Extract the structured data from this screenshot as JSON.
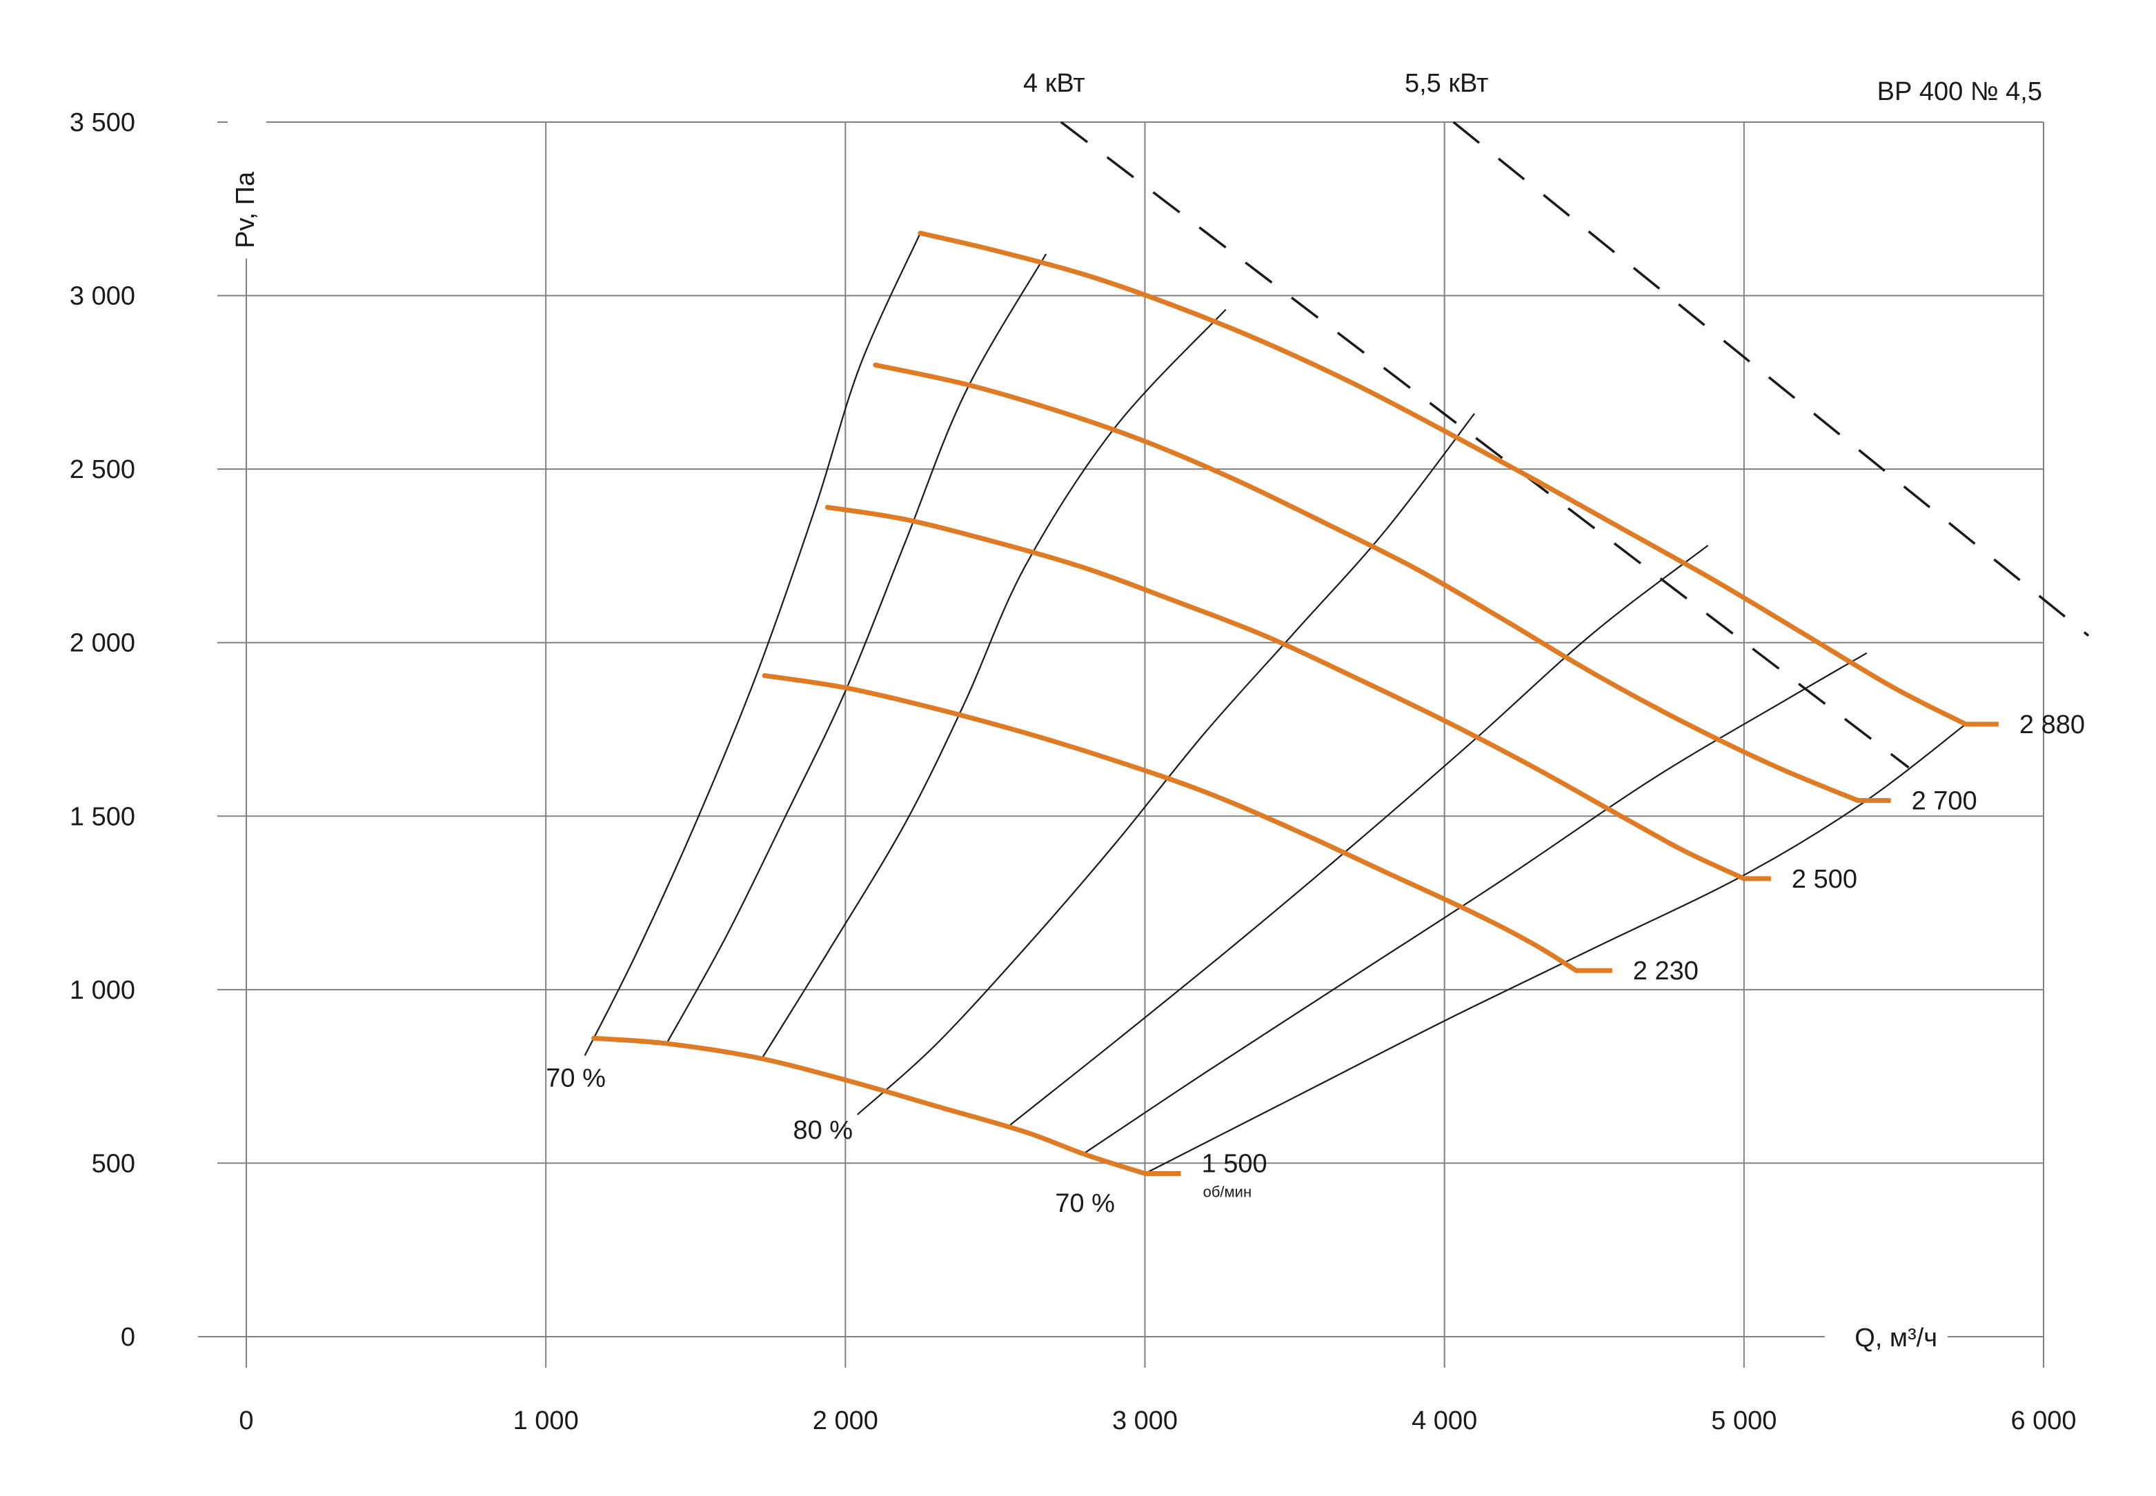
{
  "chart_data": {
    "type": "line",
    "title": "ВР 400 № 4,5",
    "xlabel": "Q, м³/ч",
    "ylabel": "Pv, Па",
    "xlim": [
      0,
      6000
    ],
    "ylim": [
      0,
      3500
    ],
    "x_ticks": [
      0,
      1000,
      2000,
      3000,
      4000,
      5000,
      6000
    ],
    "x_tick_labels": [
      "0",
      "1 000",
      "2 000",
      "3 000",
      "4 000",
      "5 000",
      "6 000"
    ],
    "y_ticks": [
      0,
      500,
      1000,
      1500,
      2000,
      2500,
      3000,
      3500
    ],
    "y_tick_labels": [
      "0",
      "500",
      "1 000",
      "1 500",
      "2 000",
      "2 500",
      "3 000",
      "3 500"
    ],
    "grid": true,
    "speed_curves": [
      {
        "label": "1 500",
        "unit": "об/мин",
        "points": [
          [
            1160,
            860
          ],
          [
            1400,
            845
          ],
          [
            1700,
            805
          ],
          [
            2000,
            740
          ],
          [
            2300,
            665
          ],
          [
            2600,
            590
          ],
          [
            2800,
            525
          ],
          [
            3000,
            470
          ]
        ],
        "stub_end": 3120
      },
      {
        "label": "2 230",
        "points": [
          [
            1730,
            1905
          ],
          [
            2000,
            1870
          ],
          [
            2300,
            1810
          ],
          [
            2600,
            1740
          ],
          [
            2900,
            1660
          ],
          [
            3200,
            1570
          ],
          [
            3500,
            1460
          ],
          [
            3800,
            1340
          ],
          [
            4100,
            1220
          ],
          [
            4300,
            1130
          ],
          [
            4440,
            1055
          ]
        ],
        "stub_end": 4560
      },
      {
        "label": "2 500",
        "points": [
          [
            1940,
            2390
          ],
          [
            2200,
            2355
          ],
          [
            2500,
            2290
          ],
          [
            2800,
            2215
          ],
          [
            3100,
            2120
          ],
          [
            3400,
            2020
          ],
          [
            3700,
            1900
          ],
          [
            4000,
            1775
          ],
          [
            4300,
            1640
          ],
          [
            4600,
            1495
          ],
          [
            4800,
            1400
          ],
          [
            5000,
            1320
          ]
        ],
        "stub_end": 5090
      },
      {
        "label": "2 700",
        "points": [
          [
            2100,
            2800
          ],
          [
            2400,
            2745
          ],
          [
            2700,
            2670
          ],
          [
            3000,
            2580
          ],
          [
            3300,
            2470
          ],
          [
            3600,
            2345
          ],
          [
            3900,
            2215
          ],
          [
            4200,
            2065
          ],
          [
            4500,
            1910
          ],
          [
            4800,
            1770
          ],
          [
            5100,
            1645
          ],
          [
            5380,
            1545
          ]
        ],
        "stub_end": 5490
      },
      {
        "label": "2 880",
        "points": [
          [
            2250,
            3180
          ],
          [
            2500,
            3130
          ],
          [
            2800,
            3060
          ],
          [
            3100,
            2970
          ],
          [
            3400,
            2865
          ],
          [
            3700,
            2745
          ],
          [
            4000,
            2610
          ],
          [
            4300,
            2470
          ],
          [
            4600,
            2325
          ],
          [
            4900,
            2180
          ],
          [
            5200,
            2025
          ],
          [
            5500,
            1870
          ],
          [
            5740,
            1765
          ]
        ],
        "stub_end": 5850
      }
    ],
    "efficiency_lines": [
      {
        "points": [
          [
            1130,
            810
          ],
          [
            1300,
            1100
          ],
          [
            1500,
            1480
          ],
          [
            1700,
            1900
          ],
          [
            1900,
            2390
          ],
          [
            2050,
            2800
          ],
          [
            2250,
            3180
          ]
        ]
      },
      {
        "points": [
          [
            1400,
            840
          ],
          [
            1600,
            1150
          ],
          [
            1800,
            1500
          ],
          [
            2000,
            1860
          ],
          [
            2200,
            2290
          ],
          [
            2400,
            2720
          ],
          [
            2670,
            3120
          ]
        ]
      },
      {
        "points": [
          [
            1720,
            800
          ],
          [
            1950,
            1120
          ],
          [
            2200,
            1480
          ],
          [
            2400,
            1830
          ],
          [
            2600,
            2220
          ],
          [
            2900,
            2620
          ],
          [
            3270,
            2960
          ]
        ]
      },
      {
        "points": [
          [
            2040,
            640
          ],
          [
            2300,
            840
          ],
          [
            2600,
            1120
          ],
          [
            2900,
            1420
          ],
          [
            3200,
            1740
          ],
          [
            3500,
            2030
          ],
          [
            3800,
            2320
          ],
          [
            4100,
            2660
          ]
        ]
      },
      {
        "points": [
          [
            2550,
            610
          ],
          [
            2900,
            850
          ],
          [
            3300,
            1130
          ],
          [
            3700,
            1420
          ],
          [
            4100,
            1720
          ],
          [
            4500,
            2030
          ],
          [
            4880,
            2280
          ]
        ]
      },
      {
        "points": [
          [
            2800,
            530
          ],
          [
            3200,
            760
          ],
          [
            3700,
            1040
          ],
          [
            4200,
            1320
          ],
          [
            4700,
            1610
          ],
          [
            5150,
            1840
          ],
          [
            5410,
            1970
          ]
        ]
      },
      {
        "points": [
          [
            3000,
            470
          ],
          [
            3500,
            690
          ],
          [
            4000,
            910
          ],
          [
            4500,
            1120
          ],
          [
            5000,
            1330
          ],
          [
            5400,
            1540
          ],
          [
            5740,
            1765
          ]
        ]
      }
    ],
    "efficiency_labels": [
      {
        "text": "70 %",
        "x": 1100,
        "y": 720
      },
      {
        "text": "80 %",
        "x": 1925,
        "y": 570
      },
      {
        "text": "70 %",
        "x": 2800,
        "y": 360
      }
    ],
    "power_lines": [
      {
        "label": "4 кВт",
        "points": [
          [
            2720,
            3500
          ],
          [
            5550,
            1640
          ]
        ]
      },
      {
        "label": "5,5 кВт",
        "points": [
          [
            4030,
            3500
          ],
          [
            6150,
            2020
          ]
        ]
      }
    ],
    "colors": {
      "speed_curve": "#e07b25",
      "grid": "#808080",
      "efficiency_line": "#1a1a1a",
      "power_line": "#1a1a1a"
    }
  }
}
